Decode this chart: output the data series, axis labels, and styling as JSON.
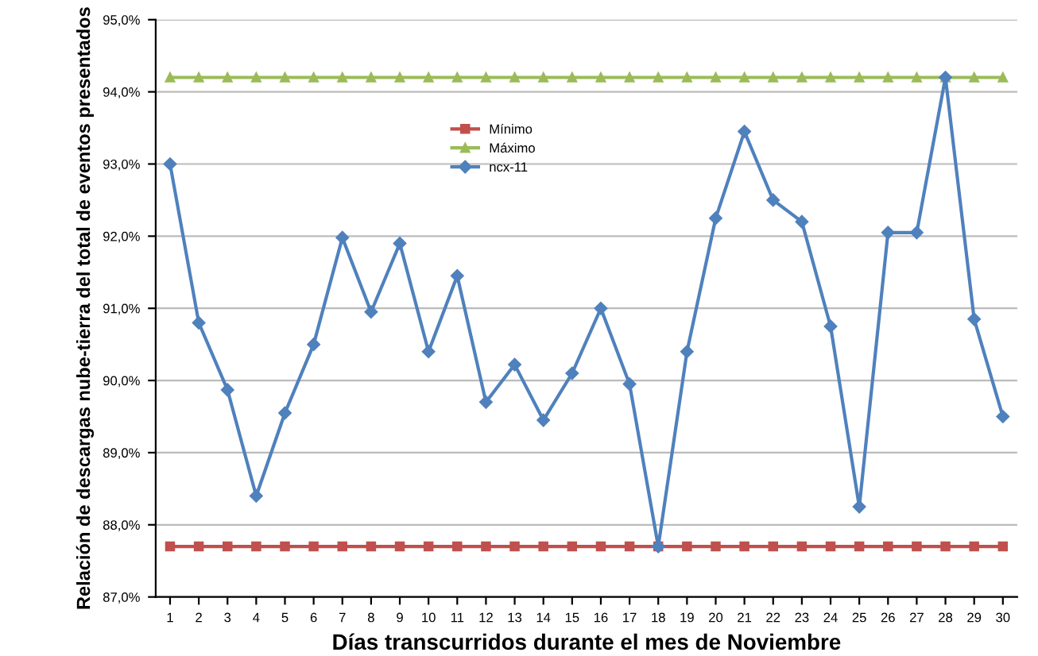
{
  "chart_data": {
    "type": "line",
    "xlabel": "Días transcurridos durante el mes de Noviembre",
    "ylabel": "Relación de descargas nube-tierra del total de eventos presentados",
    "categories": [
      "1",
      "2",
      "3",
      "4",
      "5",
      "6",
      "7",
      "8",
      "9",
      "10",
      "11",
      "12",
      "13",
      "14",
      "15",
      "16",
      "17",
      "18",
      "19",
      "20",
      "21",
      "22",
      "23",
      "24",
      "25",
      "26",
      "27",
      "28",
      "29",
      "30"
    ],
    "series": [
      {
        "name": "Mínimo",
        "color": "#c0504d",
        "marker": "square",
        "values": [
          87.7,
          87.7,
          87.7,
          87.7,
          87.7,
          87.7,
          87.7,
          87.7,
          87.7,
          87.7,
          87.7,
          87.7,
          87.7,
          87.7,
          87.7,
          87.7,
          87.7,
          87.7,
          87.7,
          87.7,
          87.7,
          87.7,
          87.7,
          87.7,
          87.7,
          87.7,
          87.7,
          87.7,
          87.7,
          87.7
        ]
      },
      {
        "name": "Máximo",
        "color": "#9bbb59",
        "marker": "triangle",
        "values": [
          94.2,
          94.2,
          94.2,
          94.2,
          94.2,
          94.2,
          94.2,
          94.2,
          94.2,
          94.2,
          94.2,
          94.2,
          94.2,
          94.2,
          94.2,
          94.2,
          94.2,
          94.2,
          94.2,
          94.2,
          94.2,
          94.2,
          94.2,
          94.2,
          94.2,
          94.2,
          94.2,
          94.2,
          94.2,
          94.2
        ]
      },
      {
        "name": "ncx-11",
        "color": "#4f81bd",
        "marker": "diamond",
        "values": [
          93.0,
          90.8,
          89.87,
          88.4,
          89.55,
          90.5,
          91.98,
          90.95,
          91.9,
          90.4,
          91.45,
          89.7,
          90.22,
          89.45,
          90.1,
          91.0,
          89.95,
          87.7,
          90.4,
          92.25,
          93.45,
          92.5,
          92.2,
          90.75,
          88.25,
          92.05,
          92.05,
          94.2,
          90.85,
          89.5
        ]
      }
    ],
    "ylim": [
      87,
      95
    ],
    "yticks": [
      {
        "value": 87,
        "label": "87,0%"
      },
      {
        "value": 88,
        "label": "88,0%"
      },
      {
        "value": 89,
        "label": "89,0%"
      },
      {
        "value": 90,
        "label": "90,0%"
      },
      {
        "value": 91,
        "label": "91,0%"
      },
      {
        "value": 92,
        "label": "92,0%"
      },
      {
        "value": 93,
        "label": "93,0%"
      },
      {
        "value": 94,
        "label": "94,0%"
      },
      {
        "value": 95,
        "label": "95,0%"
      }
    ],
    "grid": "y",
    "legend": "top",
    "line_style": "solid"
  }
}
